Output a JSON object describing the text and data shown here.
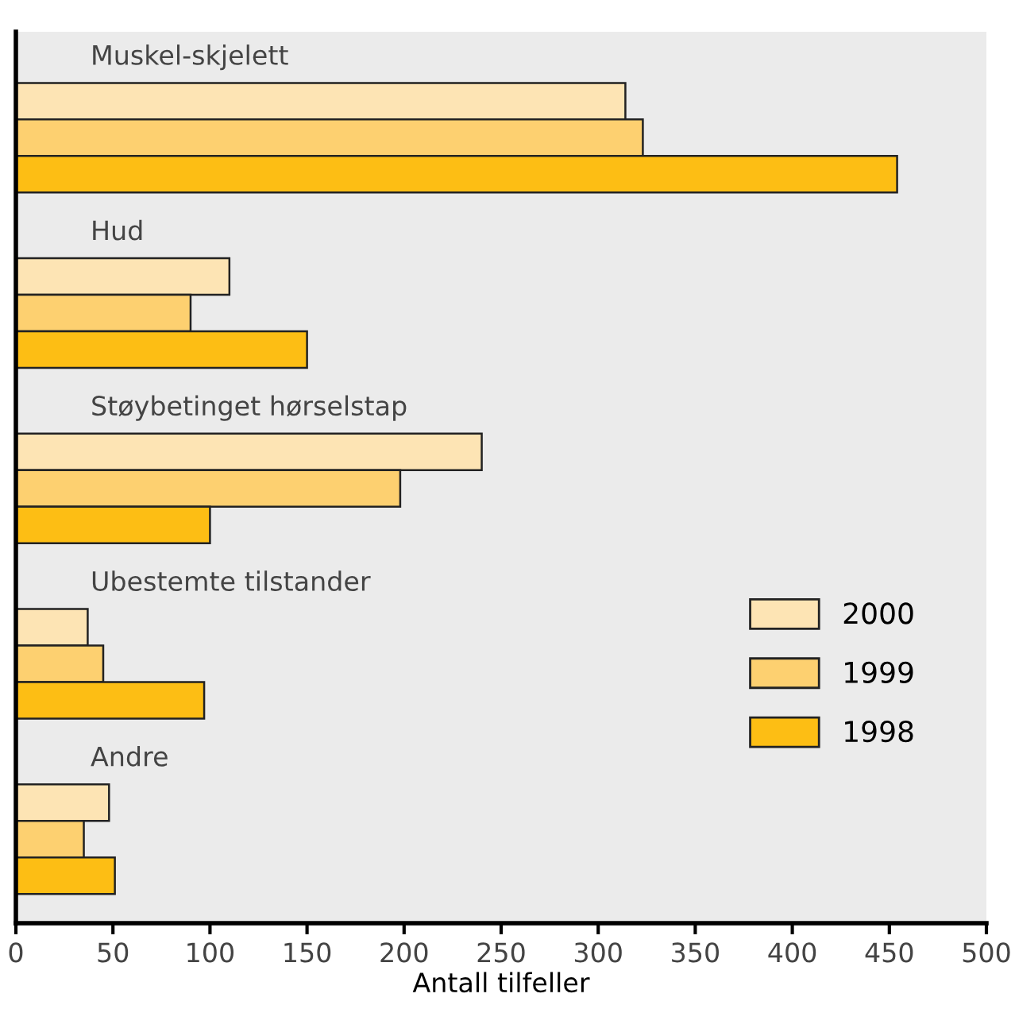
{
  "chart_data": {
    "type": "bar",
    "orientation": "horizontal",
    "xlabel": "Antall tilfeller",
    "categories": [
      "Muskel-skjelett",
      "Hud",
      "Støybetinget hørselstap",
      "Ubestemte tilstander",
      "Andre"
    ],
    "series": [
      {
        "name": "2000",
        "color": "#fde4b4",
        "values": [
          314,
          110,
          240,
          37,
          48
        ]
      },
      {
        "name": "1999",
        "color": "#fdd070",
        "values": [
          323,
          90,
          198,
          45,
          35
        ]
      },
      {
        "name": "1998",
        "color": "#fdbe14",
        "values": [
          454,
          150,
          100,
          97,
          51
        ]
      }
    ],
    "xlim": [
      0,
      500
    ],
    "xticks": [
      0,
      50,
      100,
      150,
      200,
      250,
      300,
      350,
      400,
      450,
      500
    ],
    "grid": false,
    "legend": "right"
  }
}
